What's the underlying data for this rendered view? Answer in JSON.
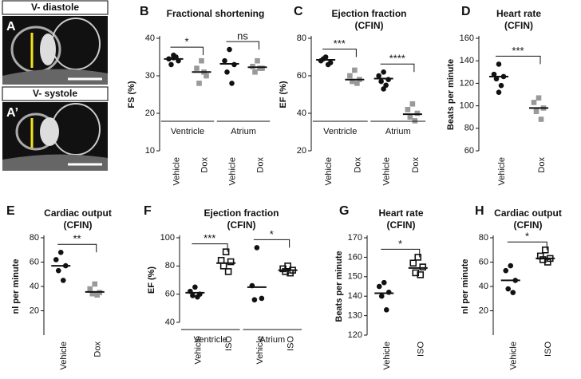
{
  "images": [
    {
      "title": "V- diastole",
      "label": "A"
    },
    {
      "title": "V- systole",
      "label": "A’"
    }
  ],
  "chart_data": [
    {
      "type": "dot",
      "panel": "B",
      "title": "Fractional shortening",
      "ylabel": "FS (%)",
      "categories": [
        "Vehicle",
        "Dox",
        "Vehicle",
        "Dox"
      ],
      "groups": [
        "Ventricle",
        "Atrium"
      ],
      "colors": [
        "#111111",
        "#999999",
        "#111111",
        "#999999"
      ],
      "markers": [
        "circle",
        "square",
        "circle",
        "square"
      ],
      "values": [
        [
          35.5,
          34.5,
          34,
          33,
          35,
          34.8
        ],
        [
          34,
          32,
          30,
          28,
          31
        ],
        [
          37,
          34,
          33,
          31,
          28
        ],
        [
          34,
          32.5,
          32,
          31,
          32
        ]
      ],
      "means": [
        34.5,
        31,
        33.2,
        32.3
      ],
      "significance": [
        "*",
        "ns"
      ],
      "ylim": [
        10,
        40
      ],
      "yticks": [
        10,
        20,
        30,
        40
      ]
    },
    {
      "type": "dot",
      "panel": "C",
      "title": "Ejection fraction",
      "subtitle": "(CFIN)",
      "ylabel": "EF (%)",
      "categories": [
        "Vehicle",
        "Dox",
        "Vehicle",
        "Dox"
      ],
      "groups": [
        "Ventricle",
        "Atrium"
      ],
      "colors": [
        "#111111",
        "#999999",
        "#111111",
        "#999999"
      ],
      "markers": [
        "circle",
        "square",
        "circle",
        "square"
      ],
      "values": [
        [
          70,
          68,
          67,
          69,
          66
        ],
        [
          63,
          60,
          58,
          57,
          56
        ],
        [
          62,
          60,
          58,
          57,
          55,
          53
        ],
        [
          45,
          42,
          40,
          38,
          36
        ]
      ],
      "means": [
        68.5,
        58,
        58.5,
        39.5
      ],
      "significance": [
        "***",
        "****"
      ],
      "ylim": [
        20,
        80
      ],
      "yticks": [
        20,
        40,
        60,
        80
      ]
    },
    {
      "type": "dot",
      "panel": "D",
      "title": "Heart rate",
      "subtitle": "(CFIN)",
      "ylabel": "Beats per minute",
      "categories": [
        "Vehicle",
        "Dox"
      ],
      "colors": [
        "#111111",
        "#999999"
      ],
      "markers": [
        "circle",
        "square"
      ],
      "values": [
        [
          137,
          128,
          126,
          124,
          118,
          112
        ],
        [
          107,
          103,
          98,
          95,
          88
        ]
      ],
      "means": [
        126,
        98
      ],
      "significance": [
        "***"
      ],
      "ylim": [
        60,
        160
      ],
      "yticks": [
        60,
        80,
        100,
        120,
        140,
        160
      ]
    },
    {
      "type": "dot",
      "panel": "E",
      "title": "Cardiac output",
      "subtitle": "(CFIN)",
      "ylabel": "nl per minute",
      "categories": [
        "Vehicle",
        "Dox"
      ],
      "colors": [
        "#111111",
        "#999999"
      ],
      "markers": [
        "circle",
        "square"
      ],
      "values": [
        [
          68,
          62,
          57,
          53,
          45
        ],
        [
          42,
          38,
          35,
          34,
          33
        ]
      ],
      "means": [
        57,
        35.5
      ],
      "significance": [
        "**"
      ],
      "ylim": [
        0,
        80
      ],
      "yticks": [
        20,
        40,
        60,
        80
      ]
    },
    {
      "type": "dot",
      "panel": "F",
      "title": "Ejection fraction",
      "subtitle": "(CFIN)",
      "ylabel": "EF (%)",
      "categories": [
        "Vehicle",
        "ISO",
        "Vehicle",
        "ISO"
      ],
      "groups": [
        "Ventricle",
        "Atrium"
      ],
      "colors": [
        "#111111",
        "#111111",
        "#111111",
        "#111111"
      ],
      "markers": [
        "circle",
        "open-square",
        "circle",
        "open-square"
      ],
      "values": [
        [
          65,
          62,
          60,
          59,
          58
        ],
        [
          90,
          84,
          83,
          80,
          76
        ],
        [
          93,
          66,
          57,
          56
        ],
        [
          80,
          78,
          77,
          76,
          75
        ]
      ],
      "means": [
        61,
        82,
        65,
        77
      ],
      "significance": [
        "***",
        "*"
      ],
      "ylim": [
        40,
        100
      ],
      "yticks": [
        40,
        60,
        80,
        100
      ]
    },
    {
      "type": "dot",
      "panel": "G",
      "title": "Heart rate",
      "subtitle": "(CFIN)",
      "ylabel": "Beats per minute",
      "categories": [
        "Vehicle",
        "ISO"
      ],
      "colors": [
        "#111111",
        "#111111"
      ],
      "markers": [
        "circle",
        "open-square"
      ],
      "values": [
        [
          147,
          145,
          142,
          140,
          133
        ],
        [
          160,
          157,
          155,
          152,
          151
        ]
      ],
      "means": [
        141.5,
        154.5
      ],
      "significance": [
        "*"
      ],
      "ylim": [
        120,
        170
      ],
      "yticks": [
        120,
        130,
        140,
        150,
        160,
        170
      ]
    },
    {
      "type": "dot",
      "panel": "H",
      "title": "Cardiac output",
      "subtitle": "(CFIN)",
      "ylabel": "nl per minute",
      "categories": [
        "Vehicle",
        "ISO"
      ],
      "colors": [
        "#111111",
        "#111111"
      ],
      "markers": [
        "circle",
        "open-square"
      ],
      "values": [
        [
          57,
          53,
          45,
          38,
          35
        ],
        [
          70,
          65,
          63,
          62,
          60
        ]
      ],
      "means": [
        45,
        63
      ],
      "significance": [
        "*"
      ],
      "ylim": [
        0,
        80
      ],
      "yticks": [
        20,
        40,
        60,
        80
      ]
    }
  ]
}
